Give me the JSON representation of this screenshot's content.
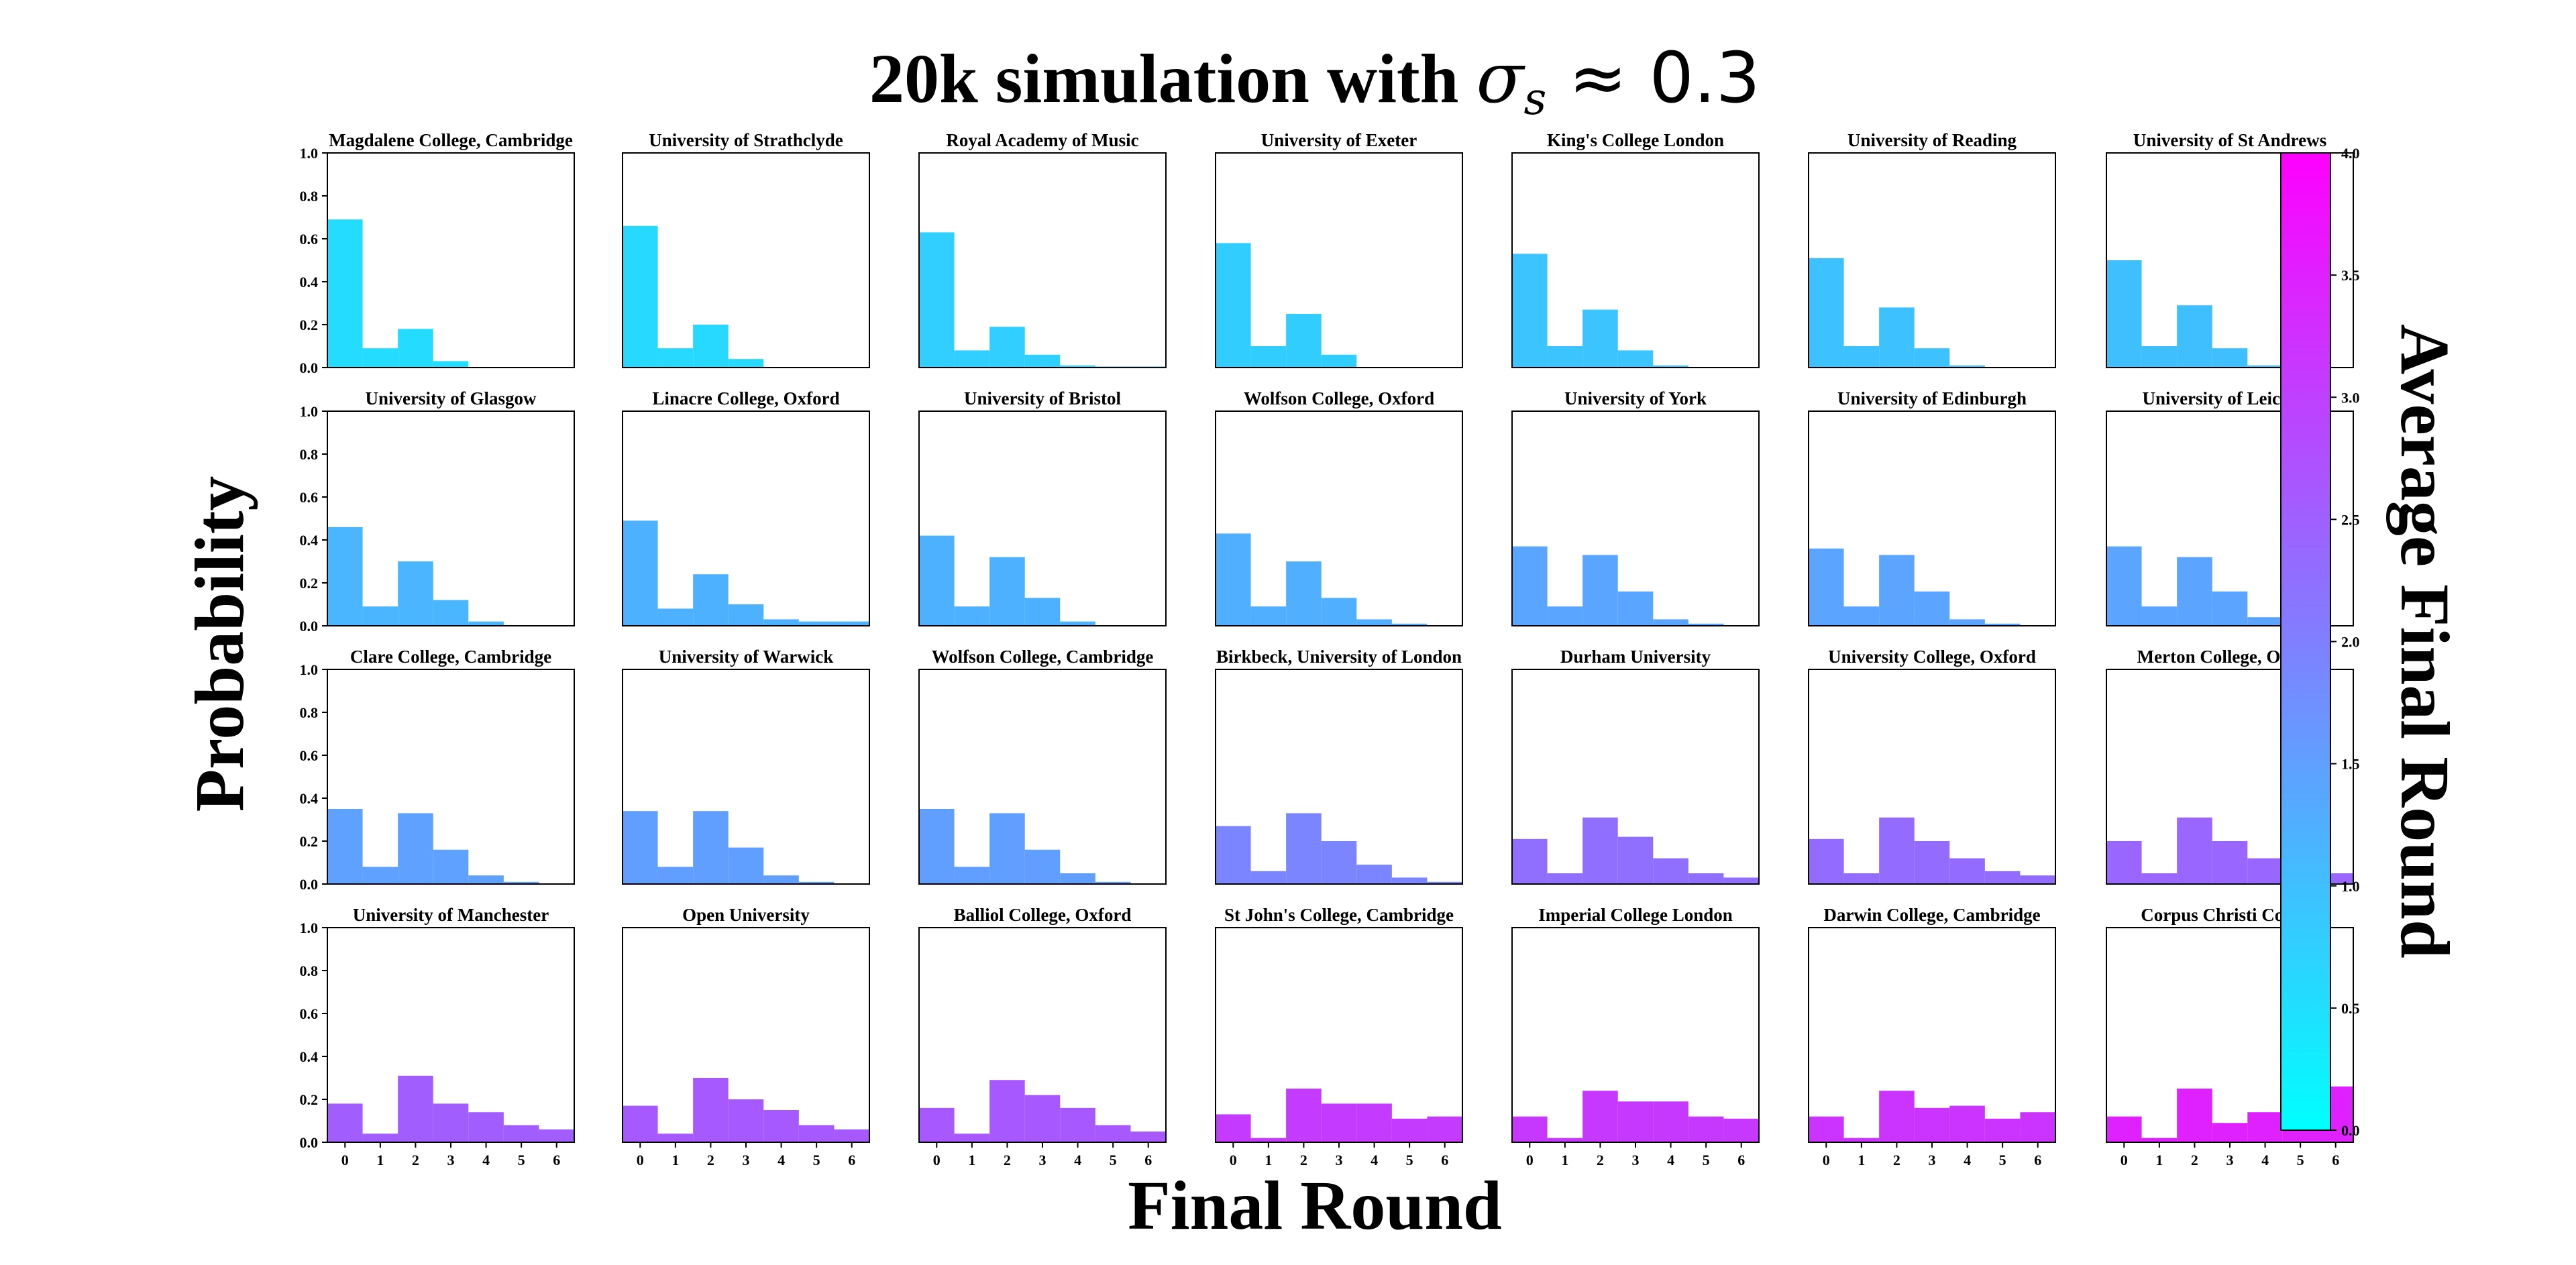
{
  "figure": {
    "title": "20k simulation with σs ≈ 0.3",
    "title_prefix": "20k simulation with ",
    "title_symbol": "σ",
    "title_subscript": "s",
    "title_suffix": " ≈ 0.3",
    "xlabel": "Final Round",
    "ylabel": "Probability",
    "colorbar_label": "Average Final Round"
  },
  "colorbar": {
    "min": 0,
    "max": 4,
    "ticks": [
      "0.0",
      "0.5",
      "1.0",
      "1.5",
      "2.0",
      "2.5",
      "3.0",
      "3.5",
      "4.0"
    ],
    "color_low": "#00ffff",
    "color_high": "#ff00ff"
  },
  "chart_data": {
    "type": "bar",
    "layout": "grid 4 rows x 7 columns of histograms",
    "categories": [
      0,
      1,
      2,
      3,
      4,
      5,
      6
    ],
    "x_tick_labels": [
      "0",
      "1",
      "2",
      "3",
      "4",
      "5",
      "6"
    ],
    "ylim": [
      0,
      1
    ],
    "y_tick_labels": [
      "0.0",
      "0.2",
      "0.4",
      "0.6",
      "0.8",
      "1.0"
    ],
    "grid": false,
    "color_encoding": "average final round (cool colormap 0 to 4)",
    "panels": [
      {
        "title": "Magdalene College, Cambridge",
        "values": [
          0.69,
          0.09,
          0.18,
          0.03,
          0.0,
          0.0,
          0.0
        ]
      },
      {
        "title": "University of Strathclyde",
        "values": [
          0.66,
          0.09,
          0.2,
          0.04,
          0.0,
          0.0,
          0.0
        ]
      },
      {
        "title": "Royal Academy of Music",
        "values": [
          0.63,
          0.08,
          0.19,
          0.06,
          0.01,
          0.005,
          0.005
        ]
      },
      {
        "title": "University of Exeter",
        "values": [
          0.58,
          0.1,
          0.25,
          0.06,
          0.0,
          0.0,
          0.0
        ]
      },
      {
        "title": "King's College London",
        "values": [
          0.53,
          0.1,
          0.27,
          0.08,
          0.01,
          0.0,
          0.0
        ]
      },
      {
        "title": "University of Reading",
        "values": [
          0.51,
          0.1,
          0.28,
          0.09,
          0.01,
          0.0,
          0.0
        ]
      },
      {
        "title": "University of St Andrews",
        "values": [
          0.5,
          0.1,
          0.29,
          0.09,
          0.01,
          0.0,
          0.0
        ]
      },
      {
        "title": "University of Glasgow",
        "values": [
          0.46,
          0.09,
          0.3,
          0.12,
          0.02,
          0.0,
          0.0
        ]
      },
      {
        "title": "Linacre College, Oxford",
        "values": [
          0.49,
          0.08,
          0.24,
          0.1,
          0.03,
          0.02,
          0.02
        ]
      },
      {
        "title": "University of Bristol",
        "values": [
          0.42,
          0.09,
          0.32,
          0.13,
          0.02,
          0.0,
          0.0
        ]
      },
      {
        "title": "Wolfson College, Oxford",
        "values": [
          0.43,
          0.09,
          0.3,
          0.13,
          0.03,
          0.01,
          0.0
        ]
      },
      {
        "title": "University of York",
        "values": [
          0.37,
          0.09,
          0.33,
          0.16,
          0.03,
          0.01,
          0.0
        ]
      },
      {
        "title": "University of Edinburgh",
        "values": [
          0.36,
          0.09,
          0.33,
          0.16,
          0.03,
          0.01,
          0.0
        ]
      },
      {
        "title": "University of Leicester",
        "values": [
          0.37,
          0.09,
          0.32,
          0.16,
          0.04,
          0.01,
          0.0
        ]
      },
      {
        "title": "Clare College, Cambridge",
        "values": [
          0.35,
          0.08,
          0.33,
          0.16,
          0.04,
          0.01,
          0.0
        ]
      },
      {
        "title": "University of Warwick",
        "values": [
          0.34,
          0.08,
          0.34,
          0.17,
          0.04,
          0.01,
          0.0
        ]
      },
      {
        "title": "Wolfson College, Cambridge",
        "values": [
          0.35,
          0.08,
          0.33,
          0.16,
          0.05,
          0.01,
          0.0
        ]
      },
      {
        "title": "Birkbeck, University of London",
        "values": [
          0.27,
          0.06,
          0.33,
          0.2,
          0.09,
          0.03,
          0.01
        ]
      },
      {
        "title": "Durham University",
        "values": [
          0.21,
          0.05,
          0.31,
          0.22,
          0.12,
          0.05,
          0.03
        ]
      },
      {
        "title": "University College, Oxford",
        "values": [
          0.21,
          0.05,
          0.31,
          0.2,
          0.12,
          0.06,
          0.04
        ]
      },
      {
        "title": "Merton College, Oxford",
        "values": [
          0.2,
          0.05,
          0.31,
          0.2,
          0.12,
          0.07,
          0.05
        ]
      },
      {
        "title": "University of Manchester",
        "values": [
          0.18,
          0.04,
          0.31,
          0.18,
          0.14,
          0.08,
          0.06
        ]
      },
      {
        "title": "Open University",
        "values": [
          0.17,
          0.04,
          0.3,
          0.2,
          0.15,
          0.08,
          0.06
        ]
      },
      {
        "title": "Balliol College, Oxford",
        "values": [
          0.16,
          0.04,
          0.29,
          0.22,
          0.16,
          0.08,
          0.05
        ]
      },
      {
        "title": "St John's College, Cambridge",
        "values": [
          0.13,
          0.02,
          0.25,
          0.18,
          0.18,
          0.11,
          0.12
        ]
      },
      {
        "title": "Imperial College London",
        "values": [
          0.12,
          0.02,
          0.24,
          0.19,
          0.19,
          0.12,
          0.11
        ]
      },
      {
        "title": "Darwin College, Cambridge",
        "values": [
          0.12,
          0.02,
          0.24,
          0.16,
          0.17,
          0.11,
          0.14
        ]
      },
      {
        "title": "Corpus Christi College",
        "values": [
          0.12,
          0.02,
          0.25,
          0.09,
          0.14,
          0.11,
          0.26
        ]
      }
    ]
  }
}
